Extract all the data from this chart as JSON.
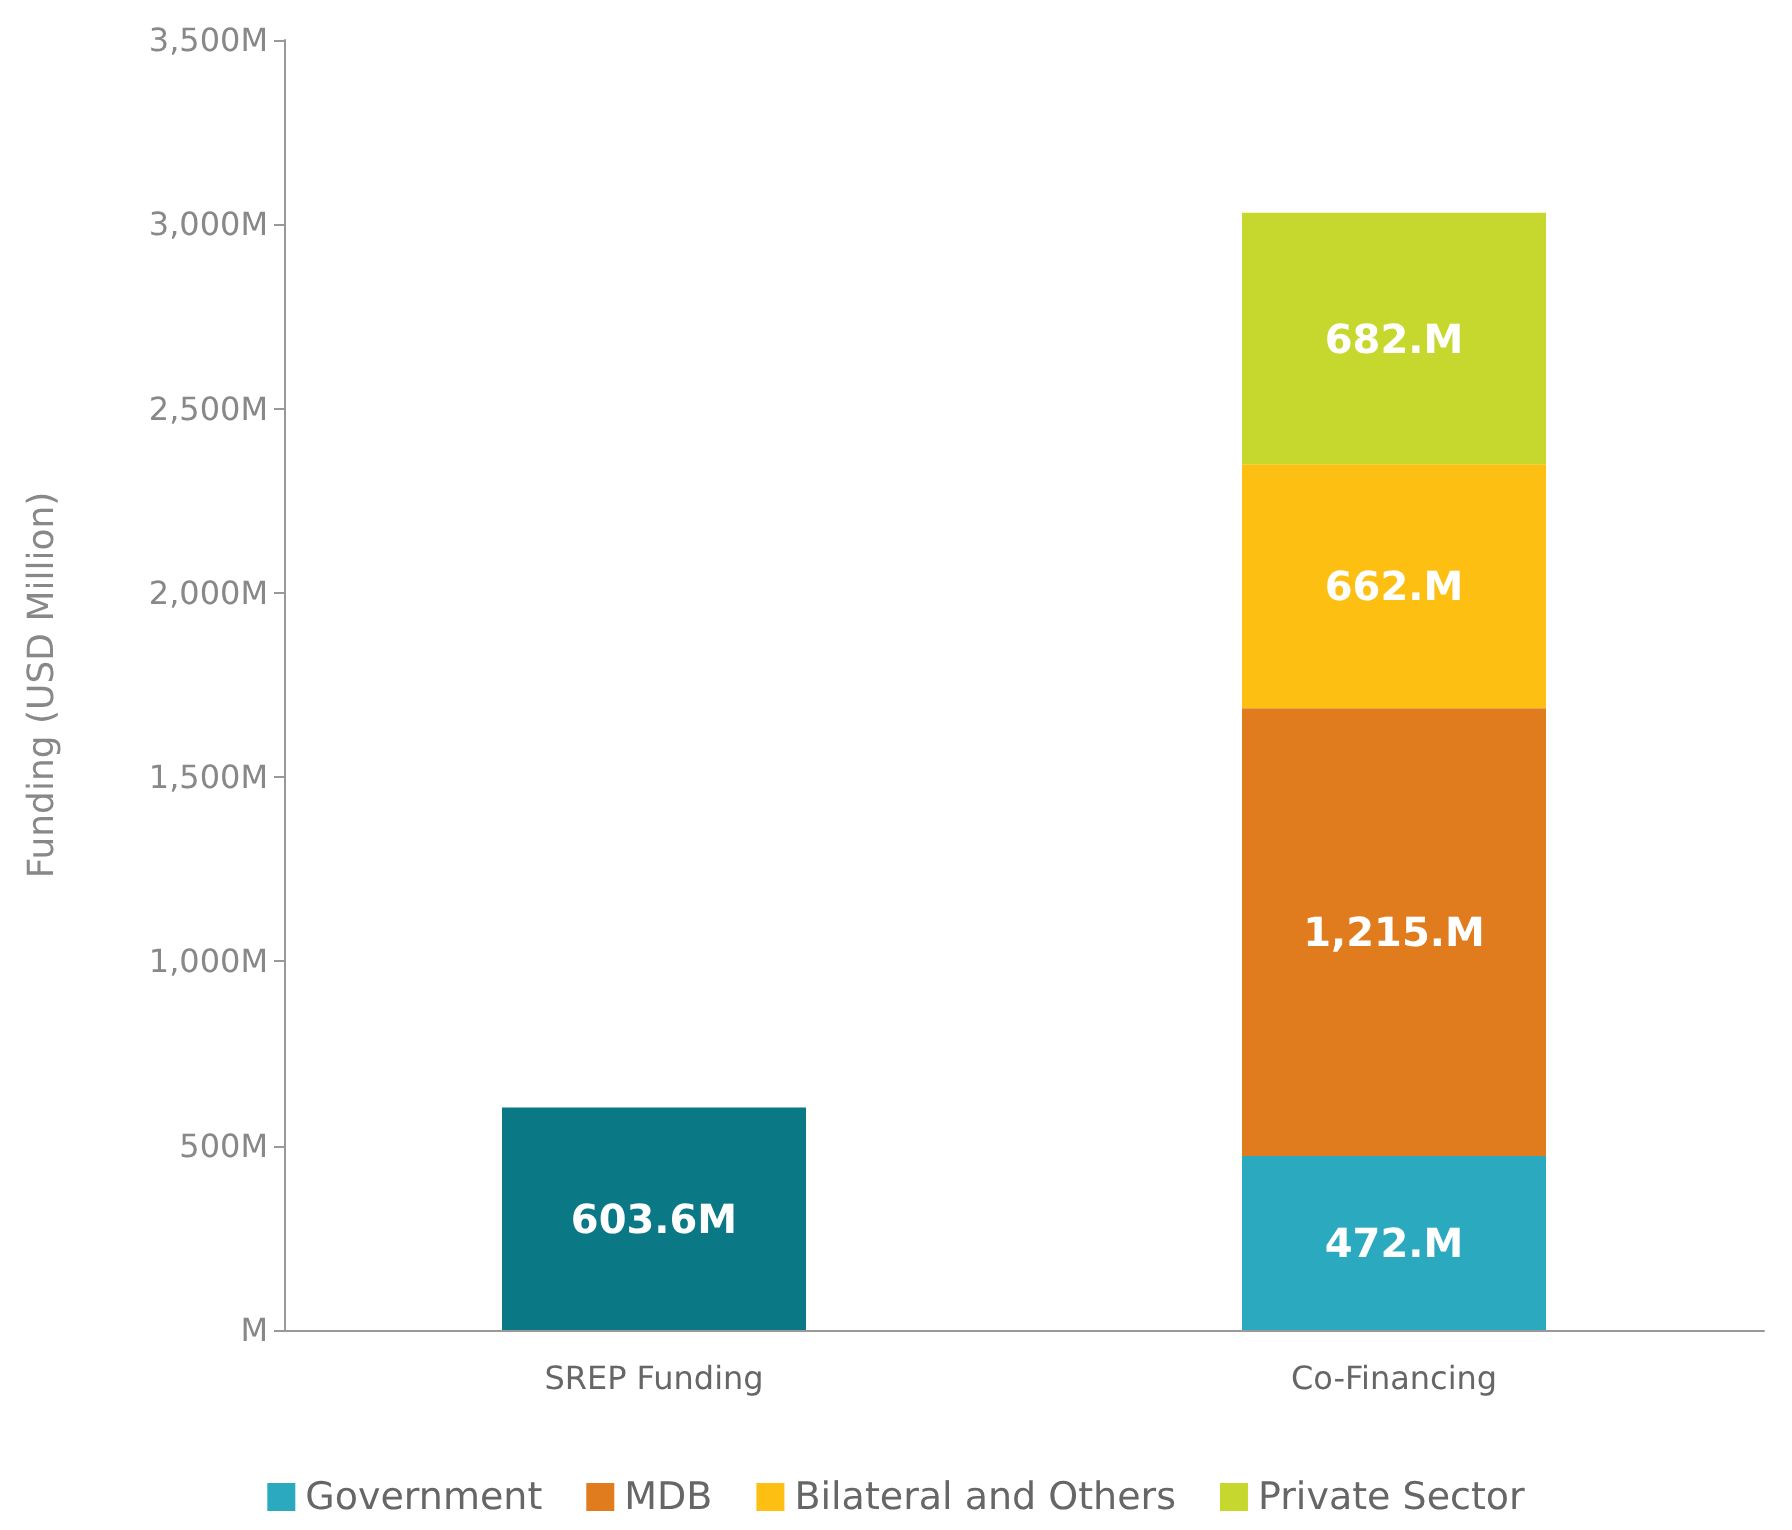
{
  "chart_data": {
    "type": "bar",
    "ylabel": "Funding (USD Million)",
    "categories": [
      "SREP Funding",
      "Co-Financing"
    ],
    "stacked": true,
    "series": [
      {
        "color": "#0b7886",
        "values": [
          603.6,
          null
        ],
        "value_labels": [
          "603.6M",
          null
        ]
      },
      {
        "name": "Government",
        "color": "#2ba9bf",
        "values": [
          null,
          472
        ],
        "value_labels": [
          null,
          "472.M"
        ]
      },
      {
        "name": "MDB",
        "color": "#e07c1d",
        "values": [
          null,
          1215
        ],
        "value_labels": [
          null,
          "1,215.M"
        ]
      },
      {
        "name": "Bilateral and Others",
        "color": "#fcbf12",
        "values": [
          null,
          662
        ],
        "value_labels": [
          null,
          "662.M"
        ]
      },
      {
        "name": "Private Sector",
        "color": "#c6d72d",
        "values": [
          null,
          682
        ],
        "value_labels": [
          null,
          "682.M"
        ]
      }
    ],
    "ylim": [
      0,
      3500
    ],
    "yticks": [
      {
        "value": 0,
        "label": "M"
      },
      {
        "value": 500,
        "label": "500M"
      },
      {
        "value": 1000,
        "label": "1,000M"
      },
      {
        "value": 1500,
        "label": "1,500M"
      },
      {
        "value": 2000,
        "label": "2,000M"
      },
      {
        "value": 2500,
        "label": "2,500M"
      },
      {
        "value": 3000,
        "label": "3,000M"
      },
      {
        "value": 3500,
        "label": "3,500M"
      }
    ],
    "grid": false,
    "legend": "bottom"
  }
}
